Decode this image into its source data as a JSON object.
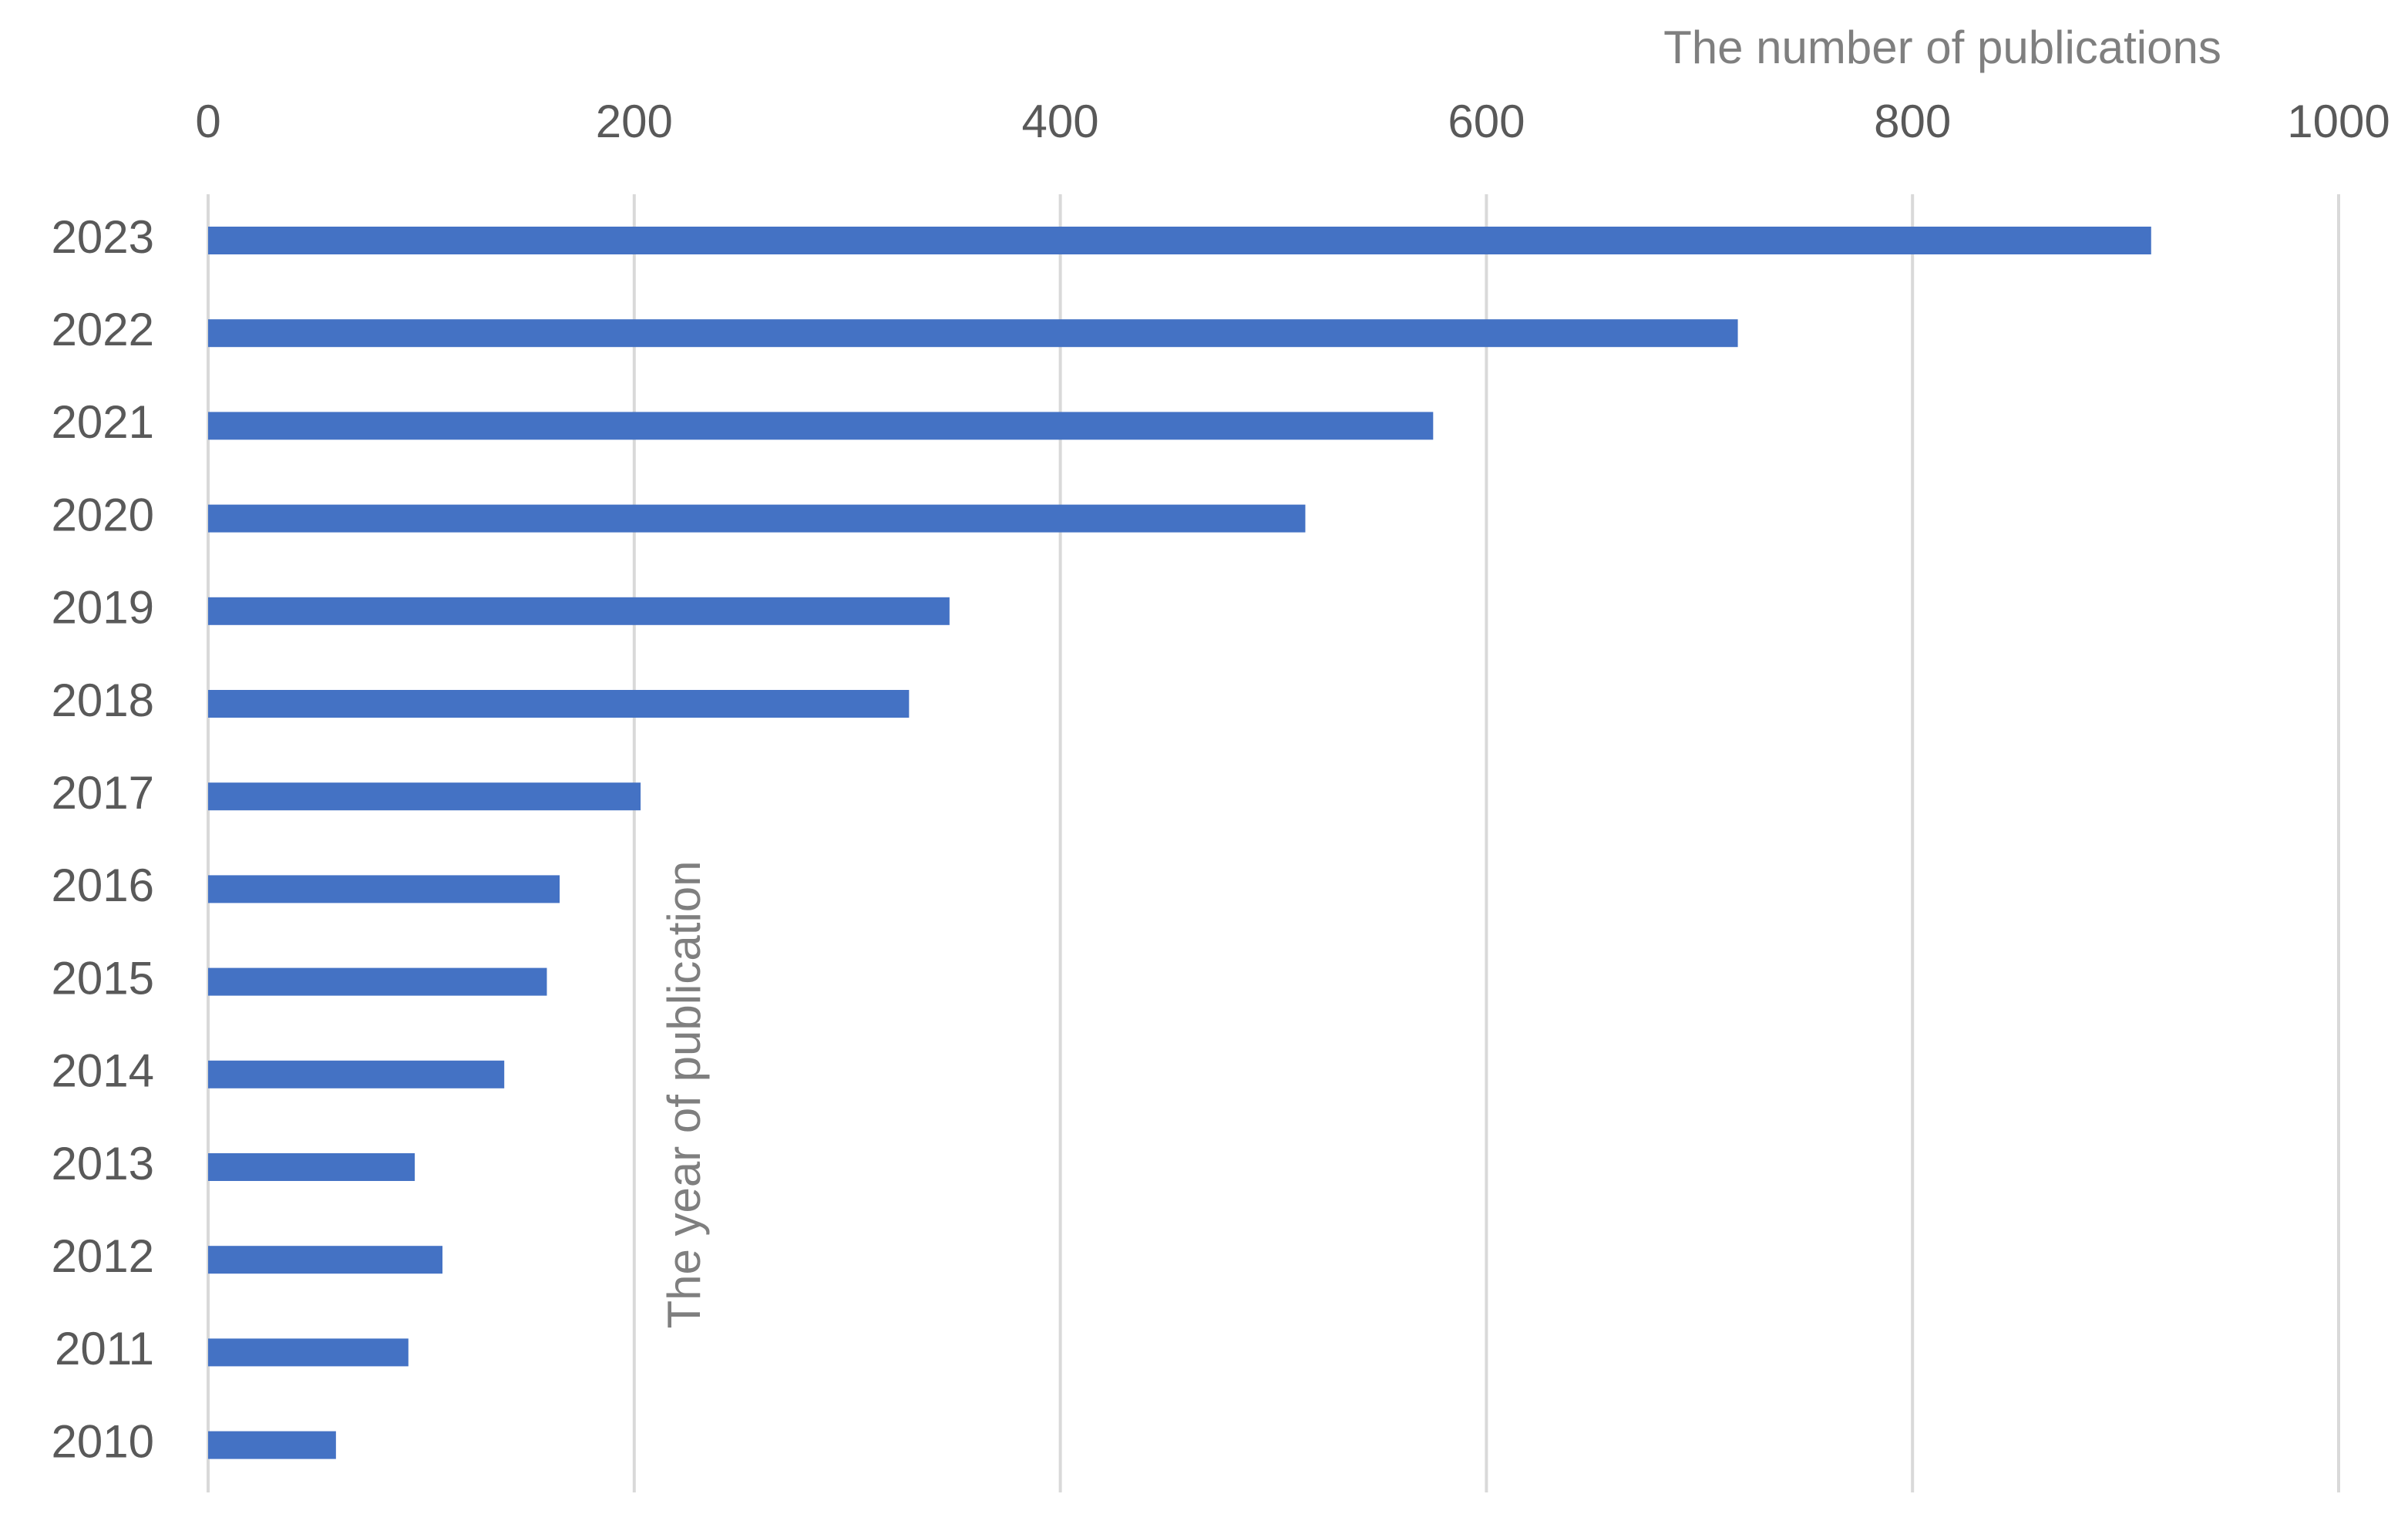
{
  "chart_data": {
    "type": "bar",
    "orientation": "horizontal",
    "title": "",
    "xlabel": "The number of publications",
    "ylabel": "The year of publication",
    "categories": [
      "2023",
      "2022",
      "2021",
      "2020",
      "2019",
      "2018",
      "2017",
      "2016",
      "2015",
      "2014",
      "2013",
      "2012",
      "2011",
      "2010"
    ],
    "values": [
      912,
      718,
      575,
      515,
      348,
      329,
      203,
      165,
      159,
      139,
      97,
      110,
      94,
      60
    ],
    "xlim": [
      0,
      1000
    ],
    "xticks": [
      "0",
      "200",
      "400",
      "600",
      "800",
      "1000"
    ],
    "x_axis_position": "top",
    "grid": true,
    "legend": "none",
    "colors": {
      "bar": "#4472C4",
      "grid": "#d9d9d9",
      "tick_text": "#595959",
      "axis_title_text": "#7f7f7f"
    }
  }
}
